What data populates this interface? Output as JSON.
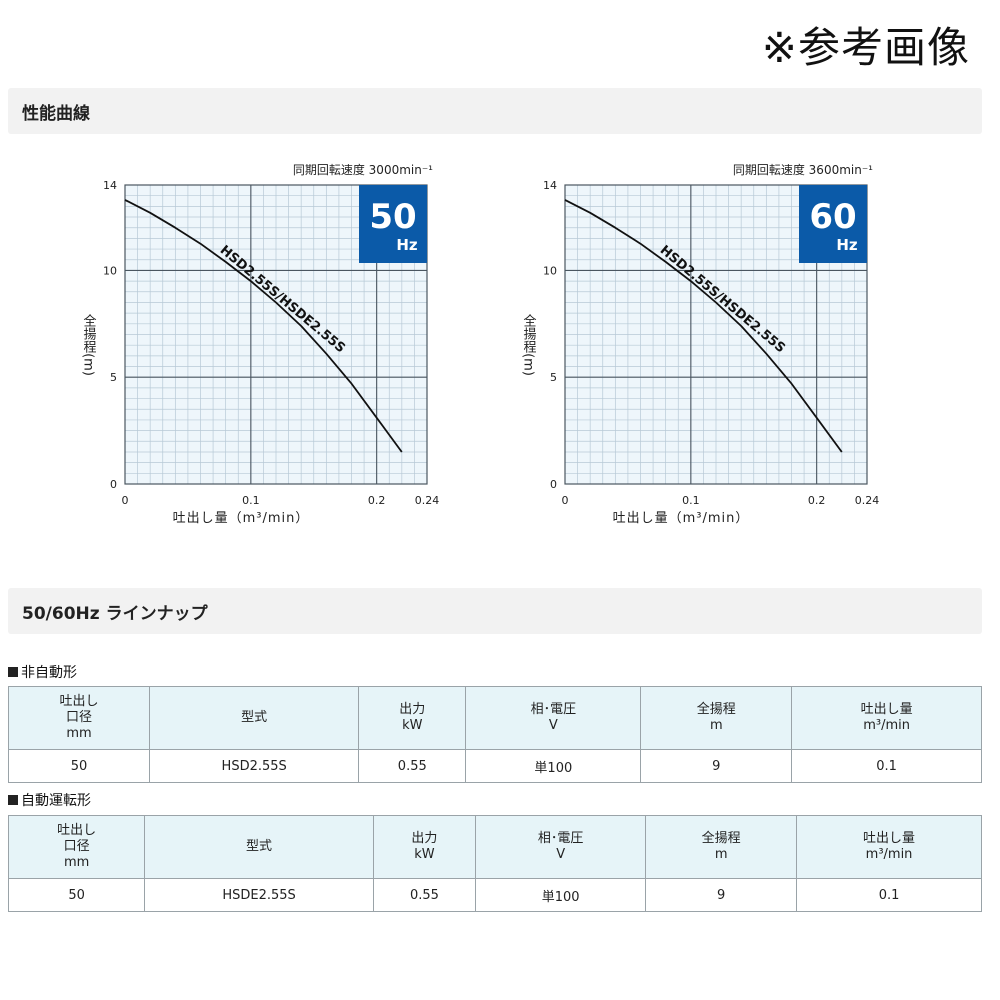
{
  "header": {
    "reference_note": "※参考画像"
  },
  "sections": {
    "performance_title": "性能曲線",
    "lineup_title": "50/60Hz ラインナップ"
  },
  "chart_data": [
    {
      "type": "line",
      "speed_label": "同期回転速度 3000min⁻¹",
      "badge": {
        "number": "50",
        "unit": "Hz",
        "color": "#0b5aa8"
      },
      "ylabel": "全揚程(m)",
      "xlabel": "吐出し量（m³/min）",
      "xlim": [
        0,
        0.24
      ],
      "ylim": [
        0,
        14
      ],
      "x_ticks": [
        "0",
        "0.1",
        "0.2",
        "0.24"
      ],
      "x_tick_values": [
        0,
        0.1,
        0.2,
        0.24
      ],
      "y_ticks": [
        "0",
        "5",
        "10",
        "14"
      ],
      "y_tick_values": [
        0,
        5,
        10,
        14
      ],
      "grid": true,
      "series": [
        {
          "name": "HSD2.55S/HSDE2.55S",
          "x": [
            0,
            0.02,
            0.04,
            0.06,
            0.08,
            0.1,
            0.12,
            0.14,
            0.16,
            0.18,
            0.2,
            0.22
          ],
          "y": [
            13.3,
            12.7,
            12.0,
            11.25,
            10.4,
            9.5,
            8.5,
            7.4,
            6.1,
            4.7,
            3.1,
            1.5
          ]
        }
      ]
    },
    {
      "type": "line",
      "speed_label": "同期回転速度 3600min⁻¹",
      "badge": {
        "number": "60",
        "unit": "Hz",
        "color": "#0b5aa8"
      },
      "ylabel": "全揚程(m)",
      "xlabel": "吐出し量（m³/min）",
      "xlim": [
        0,
        0.24
      ],
      "ylim": [
        0,
        14
      ],
      "x_ticks": [
        "0",
        "0.1",
        "0.2",
        "0.24"
      ],
      "x_tick_values": [
        0,
        0.1,
        0.2,
        0.24
      ],
      "y_ticks": [
        "0",
        "5",
        "10",
        "14"
      ],
      "y_tick_values": [
        0,
        5,
        10,
        14
      ],
      "grid": true,
      "series": [
        {
          "name": "HSD2.55S/HSDE2.55S",
          "x": [
            0,
            0.02,
            0.04,
            0.06,
            0.08,
            0.1,
            0.12,
            0.14,
            0.16,
            0.18,
            0.2,
            0.22
          ],
          "y": [
            13.3,
            12.7,
            12.0,
            11.25,
            10.4,
            9.5,
            8.5,
            7.4,
            6.1,
            4.7,
            3.1,
            1.5
          ]
        }
      ]
    }
  ],
  "tables": {
    "headers": {
      "bore_1": "吐出し",
      "bore_2": "口径",
      "bore_unit": "mm",
      "model": "型式",
      "output": "出力",
      "output_unit": "kW",
      "phase": "相･電圧",
      "phase_unit": "V",
      "head": "全揚程",
      "head_unit": "m",
      "flow": "吐出し量",
      "flow_unit": "m³/min"
    },
    "manual": {
      "label": "非自動形",
      "row": {
        "bore": "50",
        "model": "HSD2.55S",
        "output": "0.55",
        "phase": "単100",
        "head": "9",
        "flow": "0.1"
      }
    },
    "auto": {
      "label": "自動運転形",
      "row": {
        "bore": "50",
        "model": "HSDE2.55S",
        "output": "0.55",
        "phase": "単100",
        "head": "9",
        "flow": "0.1"
      }
    }
  }
}
